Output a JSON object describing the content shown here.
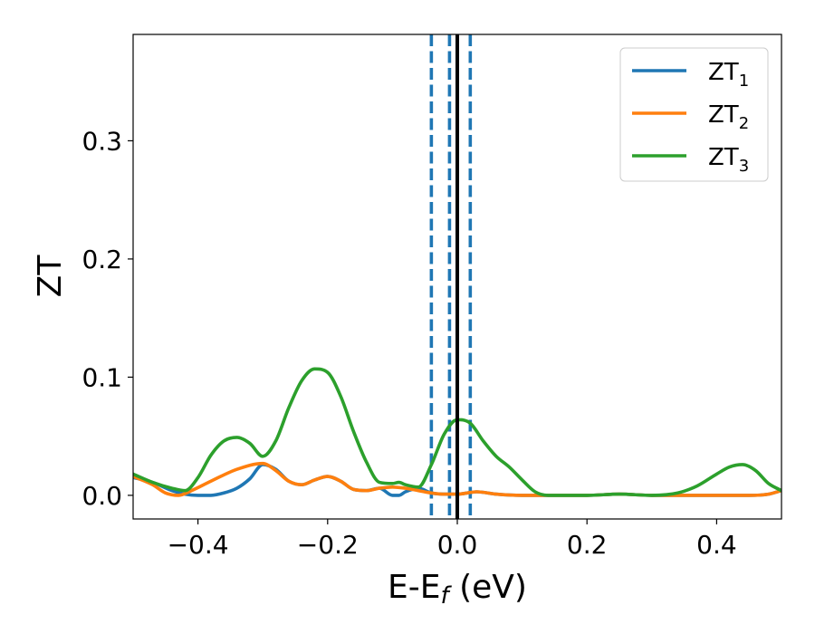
{
  "chart_data": {
    "type": "line",
    "xlabel": {
      "base": "E-E",
      "sub": "f",
      "rest": " (eV)"
    },
    "ylabel": "ZT",
    "xlim": [
      -0.5,
      0.5
    ],
    "ylim": [
      -0.02,
      0.39
    ],
    "xticks": [
      {
        "v": -0.4,
        "label": "−0.4"
      },
      {
        "v": -0.2,
        "label": "−0.2"
      },
      {
        "v": 0.0,
        "label": "0.0"
      },
      {
        "v": 0.2,
        "label": "0.2"
      },
      {
        "v": 0.4,
        "label": "0.4"
      }
    ],
    "yticks": [
      {
        "v": 0.0,
        "label": "0.0"
      },
      {
        "v": 0.1,
        "label": "0.1"
      },
      {
        "v": 0.2,
        "label": "0.2"
      },
      {
        "v": 0.3,
        "label": "0.3"
      }
    ],
    "legend_position": "top-right",
    "vlines": [
      {
        "x": -0.04,
        "style": "dashed",
        "color": "#1f77b4"
      },
      {
        "x": -0.012,
        "style": "dashed",
        "color": "#1f77b4"
      },
      {
        "x": 0.02,
        "style": "dashed",
        "color": "#1f77b4"
      },
      {
        "x": 0.0,
        "style": "solid",
        "color": "#000000"
      }
    ],
    "series": [
      {
        "name": {
          "base": "ZT",
          "sub": "1"
        },
        "color": "#1f77b4",
        "points": [
          [
            -0.5,
            0.015
          ],
          [
            -0.47,
            0.011
          ],
          [
            -0.44,
            0.004
          ],
          [
            -0.42,
            0.001
          ],
          [
            -0.4,
            0.0
          ],
          [
            -0.38,
            0.0
          ],
          [
            -0.36,
            0.002
          ],
          [
            -0.34,
            0.006
          ],
          [
            -0.32,
            0.014
          ],
          [
            -0.3,
            0.026
          ],
          [
            -0.28,
            0.022
          ],
          [
            -0.26,
            0.012
          ],
          [
            -0.24,
            0.009
          ],
          [
            -0.22,
            0.013
          ],
          [
            -0.2,
            0.016
          ],
          [
            -0.18,
            0.012
          ],
          [
            -0.16,
            0.005
          ],
          [
            -0.14,
            0.004
          ],
          [
            -0.12,
            0.006
          ],
          [
            -0.1,
            0.0
          ],
          [
            -0.09,
            0.0
          ],
          [
            -0.08,
            0.003
          ],
          [
            -0.06,
            0.006
          ],
          [
            -0.04,
            0.002
          ],
          [
            -0.02,
            0.001
          ],
          [
            0.0,
            0.001
          ],
          [
            0.03,
            0.003
          ],
          [
            0.06,
            0.001
          ],
          [
            0.1,
            0.0
          ],
          [
            0.2,
            0.0
          ],
          [
            0.25,
            0.001
          ],
          [
            0.3,
            0.0
          ],
          [
            0.35,
            0.0
          ],
          [
            0.4,
            0.0
          ],
          [
            0.45,
            0.0
          ],
          [
            0.48,
            0.001
          ],
          [
            0.5,
            0.004
          ]
        ]
      },
      {
        "name": {
          "base": "ZT",
          "sub": "2"
        },
        "color": "#ff7f0e",
        "points": [
          [
            -0.5,
            0.016
          ],
          [
            -0.47,
            0.009
          ],
          [
            -0.45,
            0.002
          ],
          [
            -0.43,
            0.0
          ],
          [
            -0.41,
            0.004
          ],
          [
            -0.38,
            0.012
          ],
          [
            -0.34,
            0.022
          ],
          [
            -0.3,
            0.027
          ],
          [
            -0.28,
            0.021
          ],
          [
            -0.26,
            0.012
          ],
          [
            -0.24,
            0.009
          ],
          [
            -0.22,
            0.013
          ],
          [
            -0.2,
            0.016
          ],
          [
            -0.18,
            0.012
          ],
          [
            -0.16,
            0.005
          ],
          [
            -0.14,
            0.004
          ],
          [
            -0.12,
            0.006
          ],
          [
            -0.1,
            0.007
          ],
          [
            -0.08,
            0.006
          ],
          [
            -0.06,
            0.004
          ],
          [
            -0.04,
            0.002
          ],
          [
            -0.02,
            0.001
          ],
          [
            0.0,
            0.001
          ],
          [
            0.03,
            0.003
          ],
          [
            0.06,
            0.001
          ],
          [
            0.1,
            0.0
          ],
          [
            0.2,
            0.0
          ],
          [
            0.25,
            0.001
          ],
          [
            0.3,
            0.0
          ],
          [
            0.35,
            0.0
          ],
          [
            0.4,
            0.0
          ],
          [
            0.45,
            0.0
          ],
          [
            0.48,
            0.001
          ],
          [
            0.5,
            0.004
          ]
        ]
      },
      {
        "name": {
          "base": "ZT",
          "sub": "3"
        },
        "color": "#2ca02c",
        "points": [
          [
            -0.5,
            0.018
          ],
          [
            -0.47,
            0.011
          ],
          [
            -0.44,
            0.006
          ],
          [
            -0.42,
            0.004
          ],
          [
            -0.4,
            0.015
          ],
          [
            -0.38,
            0.034
          ],
          [
            -0.36,
            0.046
          ],
          [
            -0.34,
            0.049
          ],
          [
            -0.32,
            0.044
          ],
          [
            -0.3,
            0.033
          ],
          [
            -0.28,
            0.046
          ],
          [
            -0.26,
            0.074
          ],
          [
            -0.24,
            0.097
          ],
          [
            -0.22,
            0.107
          ],
          [
            -0.2,
            0.104
          ],
          [
            -0.18,
            0.084
          ],
          [
            -0.16,
            0.054
          ],
          [
            -0.14,
            0.028
          ],
          [
            -0.12,
            0.011
          ],
          [
            -0.1,
            0.01
          ],
          [
            -0.09,
            0.011
          ],
          [
            -0.08,
            0.009
          ],
          [
            -0.06,
            0.007
          ],
          [
            -0.04,
            0.026
          ],
          [
            -0.02,
            0.052
          ],
          [
            0.0,
            0.064
          ],
          [
            0.02,
            0.061
          ],
          [
            0.04,
            0.046
          ],
          [
            0.06,
            0.033
          ],
          [
            0.08,
            0.024
          ],
          [
            0.1,
            0.013
          ],
          [
            0.12,
            0.003
          ],
          [
            0.14,
            0.0
          ],
          [
            0.2,
            0.0
          ],
          [
            0.25,
            0.001
          ],
          [
            0.3,
            0.0
          ],
          [
            0.34,
            0.002
          ],
          [
            0.37,
            0.008
          ],
          [
            0.4,
            0.018
          ],
          [
            0.42,
            0.024
          ],
          [
            0.44,
            0.026
          ],
          [
            0.46,
            0.021
          ],
          [
            0.48,
            0.01
          ],
          [
            0.5,
            0.004
          ]
        ]
      }
    ]
  }
}
